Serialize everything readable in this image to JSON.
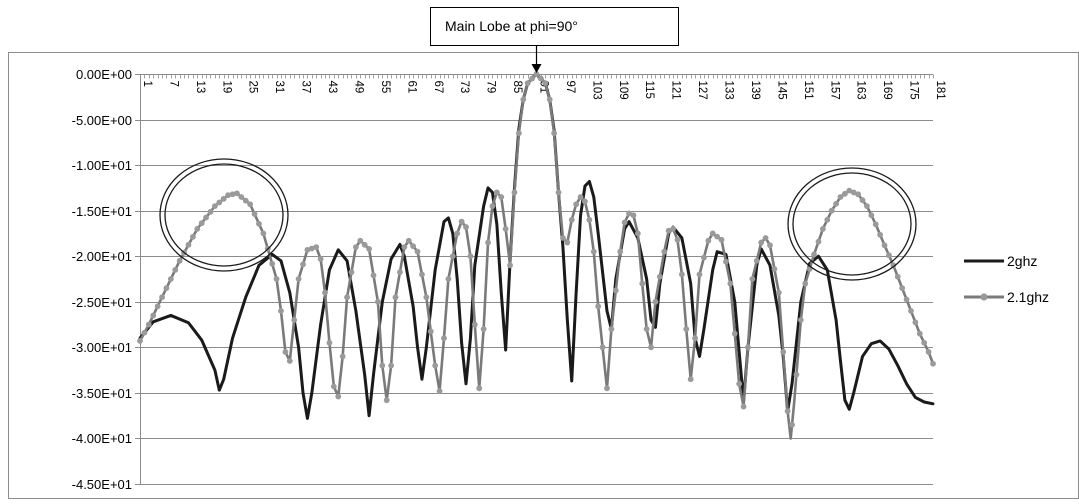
{
  "chart_data": {
    "type": "line",
    "title": "",
    "xlabel": "",
    "ylabel": "",
    "x_range": [
      1,
      181
    ],
    "ylim": [
      -45,
      0
    ],
    "y_tick_labels": [
      "0.00E+00",
      "-5.00E+00",
      "-1.00E+01",
      "-1.50E+01",
      "-2.00E+01",
      "-2.50E+01",
      "-3.00E+01",
      "-3.50E+01",
      "-4.00E+01",
      "-4.50E+01"
    ],
    "x_tick_labels": [
      "1",
      "7",
      "13",
      "19",
      "25",
      "31",
      "37",
      "43",
      "49",
      "55",
      "61",
      "67",
      "73",
      "79",
      "85",
      "91",
      "97",
      "103",
      "109",
      "115",
      "121",
      "127",
      "133",
      "139",
      "145",
      "151",
      "157",
      "163",
      "169",
      "175",
      "181"
    ],
    "gridlines": "horizontal",
    "legend_position": "right",
    "annotation": {
      "text": "Main Lobe at phi=90°",
      "x": 91,
      "y": 0
    },
    "series": [
      {
        "name": "2ghz",
        "color": "#1a1a1a",
        "marker": "none",
        "points": [
          [
            1,
            -29
          ],
          [
            4,
            -27.2
          ],
          [
            8,
            -26.5
          ],
          [
            12,
            -27.3
          ],
          [
            15,
            -29.2
          ],
          [
            18,
            -32.5
          ],
          [
            19,
            -34.7
          ],
          [
            20,
            -33.5
          ],
          [
            22,
            -29
          ],
          [
            25,
            -24.5
          ],
          [
            28,
            -21
          ],
          [
            31,
            -19.8
          ],
          [
            33,
            -20.5
          ],
          [
            35,
            -24
          ],
          [
            37,
            -30
          ],
          [
            38,
            -35
          ],
          [
            39,
            -37.8
          ],
          [
            40,
            -35
          ],
          [
            42,
            -27.5
          ],
          [
            44,
            -21.5
          ],
          [
            46,
            -19.3
          ],
          [
            48,
            -20.5
          ],
          [
            50,
            -26
          ],
          [
            52,
            -33
          ],
          [
            53,
            -37.5
          ],
          [
            54,
            -33
          ],
          [
            56,
            -25
          ],
          [
            58,
            -20.3
          ],
          [
            60,
            -18.7
          ],
          [
            61,
            -20
          ],
          [
            63,
            -25.5
          ],
          [
            64,
            -30
          ],
          [
            65,
            -33.5
          ],
          [
            66,
            -30
          ],
          [
            68,
            -21.5
          ],
          [
            70,
            -16.2
          ],
          [
            71,
            -15.8
          ],
          [
            72,
            -17.5
          ],
          [
            73,
            -22.5
          ],
          [
            74,
            -29.5
          ],
          [
            75,
            -34
          ],
          [
            76,
            -29
          ],
          [
            77,
            -21
          ],
          [
            79,
            -14.5
          ],
          [
            80,
            -12.5
          ],
          [
            81,
            -13
          ],
          [
            82,
            -16.5
          ],
          [
            83,
            -24
          ],
          [
            84,
            -30.3
          ],
          [
            85,
            -20.5
          ],
          [
            86,
            -12.5
          ],
          [
            87,
            -6
          ],
          [
            88,
            -2.8
          ],
          [
            89,
            -1
          ],
          [
            91,
            0
          ],
          [
            93,
            -1
          ],
          [
            94,
            -2.8
          ],
          [
            95,
            -6.2
          ],
          [
            96,
            -13
          ],
          [
            97,
            -19
          ],
          [
            98,
            -27
          ],
          [
            99,
            -33.7
          ],
          [
            100,
            -24
          ],
          [
            101,
            -15.5
          ],
          [
            102,
            -12.3
          ],
          [
            103,
            -11.8
          ],
          [
            104,
            -13.5
          ],
          [
            105,
            -17.5
          ],
          [
            107,
            -26
          ],
          [
            108,
            -28
          ],
          [
            109,
            -22.5
          ],
          [
            111,
            -17
          ],
          [
            112,
            -16.2
          ],
          [
            114,
            -18
          ],
          [
            116,
            -22.5
          ],
          [
            117,
            -27
          ],
          [
            118,
            -27.8
          ],
          [
            119,
            -23
          ],
          [
            121,
            -17.5
          ],
          [
            122,
            -16.8
          ],
          [
            124,
            -18
          ],
          [
            126,
            -23
          ],
          [
            127,
            -29
          ],
          [
            128,
            -31
          ],
          [
            129,
            -28
          ],
          [
            131,
            -21.5
          ],
          [
            132,
            -19.5
          ],
          [
            134,
            -19.8
          ],
          [
            136,
            -25
          ],
          [
            137,
            -30.5
          ],
          [
            138,
            -35.9
          ],
          [
            139,
            -30
          ],
          [
            141,
            -21
          ],
          [
            142,
            -19.2
          ],
          [
            144,
            -21
          ],
          [
            146,
            -26.5
          ],
          [
            147,
            -31
          ],
          [
            148,
            -37
          ],
          [
            149,
            -34
          ],
          [
            151,
            -25
          ],
          [
            153,
            -20.8
          ],
          [
            155,
            -20
          ],
          [
            157,
            -21.5
          ],
          [
            159,
            -27
          ],
          [
            160,
            -31.5
          ],
          [
            161,
            -35.8
          ],
          [
            162,
            -36.8
          ],
          [
            163,
            -35
          ],
          [
            165,
            -31
          ],
          [
            167,
            -29.6
          ],
          [
            169,
            -29.3
          ],
          [
            171,
            -30.2
          ],
          [
            173,
            -32
          ],
          [
            175,
            -34
          ],
          [
            177,
            -35.5
          ],
          [
            179,
            -36
          ],
          [
            181,
            -36.2
          ]
        ]
      },
      {
        "name": "2.1ghz",
        "color": "#7a7a7a",
        "marker": "circle",
        "points": [
          [
            1,
            -29.3
          ],
          [
            3,
            -27.5
          ],
          [
            6,
            -24.5
          ],
          [
            10,
            -20.5
          ],
          [
            14,
            -17
          ],
          [
            18,
            -14.5
          ],
          [
            21,
            -13.3
          ],
          [
            23,
            -13.1
          ],
          [
            26,
            -14.3
          ],
          [
            29,
            -17.5
          ],
          [
            32,
            -22.5
          ],
          [
            33,
            -26
          ],
          [
            34,
            -30.5
          ],
          [
            35,
            -31.5
          ],
          [
            36,
            -27
          ],
          [
            37,
            -22.5
          ],
          [
            39,
            -19.3
          ],
          [
            41,
            -19
          ],
          [
            42,
            -20.3
          ],
          [
            43,
            -24
          ],
          [
            44,
            -29.5
          ],
          [
            45,
            -34.3
          ],
          [
            46,
            -35.4
          ],
          [
            47,
            -31
          ],
          [
            48,
            -24.5
          ],
          [
            50,
            -19
          ],
          [
            51,
            -18.3
          ],
          [
            53,
            -19.2
          ],
          [
            55,
            -25
          ],
          [
            56,
            -32
          ],
          [
            57,
            -35.8
          ],
          [
            58,
            -32
          ],
          [
            59,
            -24.5
          ],
          [
            61,
            -19
          ],
          [
            62,
            -18.3
          ],
          [
            64,
            -19.5
          ],
          [
            66,
            -24.5
          ],
          [
            68,
            -32
          ],
          [
            69,
            -34.8
          ],
          [
            70,
            -29
          ],
          [
            71,
            -22.5
          ],
          [
            73,
            -17.5
          ],
          [
            74,
            -16.2
          ],
          [
            75,
            -16.8
          ],
          [
            76,
            -20
          ],
          [
            77,
            -27.5
          ],
          [
            78,
            -34.5
          ],
          [
            79,
            -28
          ],
          [
            80,
            -18.5
          ],
          [
            81,
            -14.5
          ],
          [
            82,
            -13
          ],
          [
            83,
            -13.5
          ],
          [
            84,
            -17
          ],
          [
            85,
            -21
          ],
          [
            86,
            -13
          ],
          [
            87,
            -6.5
          ],
          [
            88,
            -2.8
          ],
          [
            89,
            -1
          ],
          [
            91,
            0
          ],
          [
            93,
            -1
          ],
          [
            94,
            -2.8
          ],
          [
            95,
            -6.5
          ],
          [
            96,
            -13
          ],
          [
            97,
            -18
          ],
          [
            98,
            -18.5
          ],
          [
            99,
            -16
          ],
          [
            100,
            -14.3
          ],
          [
            101,
            -13.5
          ],
          [
            102,
            -14
          ],
          [
            103,
            -16
          ],
          [
            104,
            -19.5
          ],
          [
            105,
            -25.5
          ],
          [
            106,
            -30
          ],
          [
            107,
            -34.5
          ],
          [
            108,
            -28
          ],
          [
            110,
            -19.5
          ],
          [
            111,
            -16.3
          ],
          [
            112,
            -15.3
          ],
          [
            113,
            -15.5
          ],
          [
            114,
            -17.5
          ],
          [
            115,
            -23
          ],
          [
            116,
            -28
          ],
          [
            117,
            -30
          ],
          [
            118,
            -25
          ],
          [
            120,
            -19.5
          ],
          [
            121,
            -17.2
          ],
          [
            122,
            -17
          ],
          [
            123,
            -18.2
          ],
          [
            124,
            -22
          ],
          [
            125,
            -28
          ],
          [
            126,
            -33.5
          ],
          [
            127,
            -29
          ],
          [
            128,
            -22
          ],
          [
            130,
            -18.3
          ],
          [
            131,
            -17.5
          ],
          [
            133,
            -18.2
          ],
          [
            135,
            -23
          ],
          [
            136,
            -28.5
          ],
          [
            137,
            -34
          ],
          [
            138,
            -36.5
          ],
          [
            139,
            -30
          ],
          [
            140,
            -22.5
          ],
          [
            142,
            -18.5
          ],
          [
            143,
            -18
          ],
          [
            144,
            -18.8
          ],
          [
            146,
            -24
          ],
          [
            147,
            -30.5
          ],
          [
            148,
            -37
          ],
          [
            148.7,
            -40
          ],
          [
            149.5,
            -36
          ],
          [
            150,
            -33
          ],
          [
            151,
            -27
          ],
          [
            152,
            -23
          ],
          [
            154,
            -19.8
          ],
          [
            156,
            -17
          ],
          [
            158,
            -15
          ],
          [
            160,
            -13.5
          ],
          [
            162,
            -12.8
          ],
          [
            164,
            -13.2
          ],
          [
            166,
            -14.5
          ],
          [
            168,
            -16.5
          ],
          [
            170,
            -18.8
          ],
          [
            172,
            -21
          ],
          [
            174,
            -23.5
          ],
          [
            176,
            -26
          ],
          [
            178,
            -28.5
          ],
          [
            180,
            -30.5
          ],
          [
            181,
            -31.8
          ]
        ]
      }
    ]
  }
}
